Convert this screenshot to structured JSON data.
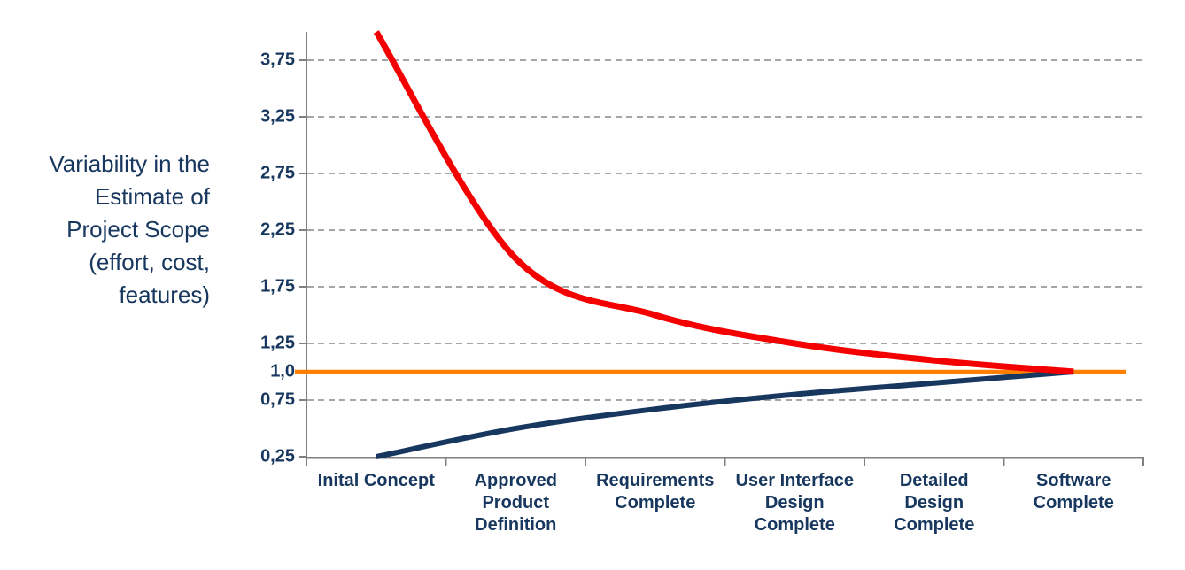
{
  "y_axis_title": {
    "text": "Variability in the\nEstimate of\nProject Scope\n(effort, cost,\nfeatures)"
  },
  "chart_data": {
    "type": "line",
    "title": "",
    "xlabel": "",
    "ylabel": "Variability in the Estimate of Project Scope (effort, cost, features)",
    "ylim": [
      0.25,
      4.0
    ],
    "grid": "horizontal-dashed",
    "legend": "none",
    "categories": [
      "Inital Concept",
      "Approved\nProduct\nDefinition",
      "Requirements\nComplete",
      "User Interface\nDesign\nComplete",
      "Detailed\nDesign\nComplete",
      "Software\nComplete"
    ],
    "y_ticks": [
      {
        "value": 3.75,
        "label": "3,75",
        "gridline": true
      },
      {
        "value": 3.25,
        "label": "3,25",
        "gridline": true
      },
      {
        "value": 2.75,
        "label": "2,75",
        "gridline": true
      },
      {
        "value": 2.25,
        "label": "2,25",
        "gridline": true
      },
      {
        "value": 1.75,
        "label": "1,75",
        "gridline": true
      },
      {
        "value": 1.25,
        "label": "1,25",
        "gridline": true
      },
      {
        "value": 1.0,
        "label": "1,0",
        "gridline": false
      },
      {
        "value": 0.75,
        "label": "0,75",
        "gridline": true
      },
      {
        "value": 0.25,
        "label": "0,25",
        "gridline": false
      }
    ],
    "series": [
      {
        "name": "upper-estimate",
        "color": "#F40000",
        "width": 7,
        "smooth": true,
        "values": [
          4.0,
          2.0,
          1.5,
          1.25,
          1.1,
          1.0
        ]
      },
      {
        "name": "baseline",
        "color": "#FF8000",
        "width": 4.5,
        "smooth": false,
        "full_span": true,
        "values": [
          1.0,
          1.0,
          1.0,
          1.0,
          1.0,
          1.0
        ]
      },
      {
        "name": "lower-estimate",
        "color": "#17375E",
        "width": 6,
        "smooth": true,
        "values": [
          0.25,
          0.5,
          0.67,
          0.8,
          0.9,
          1.0
        ]
      }
    ],
    "colors": {
      "text": "#17375E",
      "gridline": "#A6A6A6",
      "axis": "#808080"
    }
  }
}
